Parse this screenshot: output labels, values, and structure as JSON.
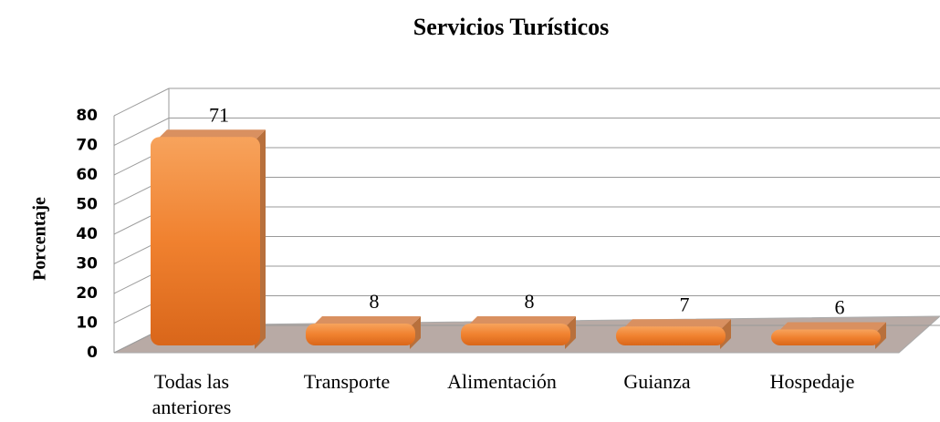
{
  "chart_data": {
    "type": "bar",
    "title": "Servicios Turísticos",
    "y_label": "Porcentaje",
    "categories": [
      "Todas las anteriores",
      "Transporte",
      "Alimentación",
      "Guianza",
      "Hospedaje"
    ],
    "values": [
      71,
      8,
      8,
      7,
      6
    ],
    "color": "#f0812f",
    "ylim": [
      0,
      80
    ],
    "yticks": [
      0,
      10,
      20,
      30,
      40,
      50,
      60,
      70,
      80
    ],
    "grid": true
  }
}
